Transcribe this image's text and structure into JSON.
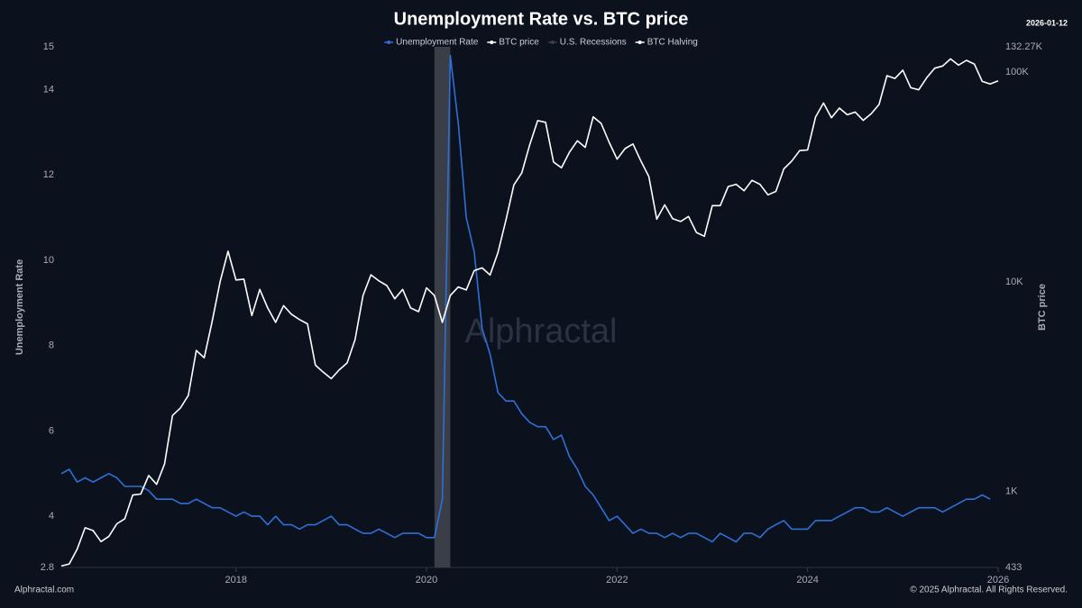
{
  "chart_data": {
    "type": "line",
    "title": "Unemployment Rate vs. BTC price",
    "date": "2026-01-12",
    "y_label": "Unemployment Rate",
    "y2_label": "BTC price",
    "watermark": "Alphractal",
    "footer_left": "Alphractal.com",
    "footer_right": "© 2025 Alphractal. All Rights Reserved.",
    "x": [
      "2016-03",
      "2016-04",
      "2016-05",
      "2016-06",
      "2016-07",
      "2016-08",
      "2016-09",
      "2016-10",
      "2016-11",
      "2016-12",
      "2017-01",
      "2017-02",
      "2017-03",
      "2017-04",
      "2017-05",
      "2017-06",
      "2017-07",
      "2017-08",
      "2017-09",
      "2017-10",
      "2017-11",
      "2017-12",
      "2018-01",
      "2018-02",
      "2018-03",
      "2018-04",
      "2018-05",
      "2018-06",
      "2018-07",
      "2018-08",
      "2018-09",
      "2018-10",
      "2018-11",
      "2018-12",
      "2019-01",
      "2019-02",
      "2019-03",
      "2019-04",
      "2019-05",
      "2019-06",
      "2019-07",
      "2019-08",
      "2019-09",
      "2019-10",
      "2019-11",
      "2019-12",
      "2020-01",
      "2020-02",
      "2020-03",
      "2020-04",
      "2020-05",
      "2020-06",
      "2020-07",
      "2020-08",
      "2020-09",
      "2020-10",
      "2020-11",
      "2020-12",
      "2021-01",
      "2021-02",
      "2021-03",
      "2021-04",
      "2021-05",
      "2021-06",
      "2021-07",
      "2021-08",
      "2021-09",
      "2021-10",
      "2021-11",
      "2021-12",
      "2022-01",
      "2022-02",
      "2022-03",
      "2022-04",
      "2022-05",
      "2022-06",
      "2022-07",
      "2022-08",
      "2022-09",
      "2022-10",
      "2022-11",
      "2022-12",
      "2023-01",
      "2023-02",
      "2023-03",
      "2023-04",
      "2023-05",
      "2023-06",
      "2023-07",
      "2023-08",
      "2023-09",
      "2023-10",
      "2023-11",
      "2023-12",
      "2024-01",
      "2024-02",
      "2024-03",
      "2024-04",
      "2024-05",
      "2024-06",
      "2024-07",
      "2024-08",
      "2024-09",
      "2024-10",
      "2024-11",
      "2024-12",
      "2025-01",
      "2025-02",
      "2025-03",
      "2025-04",
      "2025-05",
      "2025-06",
      "2025-07",
      "2025-08",
      "2025-09",
      "2025-10",
      "2025-11",
      "2025-12",
      "2026-01"
    ],
    "series": [
      {
        "name": "Unemployment Rate",
        "color": "#2f6fd6",
        "values": [
          5.0,
          5.1,
          4.8,
          4.9,
          4.8,
          4.9,
          5.0,
          4.9,
          4.7,
          4.7,
          4.7,
          4.6,
          4.4,
          4.4,
          4.4,
          4.3,
          4.3,
          4.4,
          4.3,
          4.2,
          4.2,
          4.1,
          4.0,
          4.1,
          4.0,
          4.0,
          3.8,
          4.0,
          3.8,
          3.8,
          3.7,
          3.8,
          3.8,
          3.9,
          4.0,
          3.8,
          3.8,
          3.7,
          3.6,
          3.6,
          3.7,
          3.6,
          3.5,
          3.6,
          3.6,
          3.6,
          3.5,
          3.5,
          4.4,
          14.8,
          13.2,
          11.0,
          10.2,
          8.4,
          7.8,
          6.9,
          6.7,
          6.7,
          6.4,
          6.2,
          6.1,
          6.1,
          5.8,
          5.9,
          5.4,
          5.1,
          4.7,
          4.5,
          4.2,
          3.9,
          4.0,
          3.8,
          3.6,
          3.7,
          3.6,
          3.6,
          3.5,
          3.6,
          3.5,
          3.6,
          3.6,
          3.5,
          3.4,
          3.6,
          3.5,
          3.4,
          3.6,
          3.6,
          3.5,
          3.7,
          3.8,
          3.9,
          3.7,
          3.7,
          3.7,
          3.9,
          3.9,
          3.9,
          4.0,
          4.1,
          4.2,
          4.2,
          4.1,
          4.1,
          4.2,
          4.1,
          4.0,
          4.1,
          4.2,
          4.2,
          4.2,
          4.1,
          4.2,
          4.3,
          4.4,
          4.4,
          4.5,
          4.4,
          null
        ]
      },
      {
        "name": "BTC price",
        "color": "#ffffff",
        "axis": "y2",
        "values": [
          440,
          450,
          530,
          670,
          650,
          575,
          610,
          700,
          740,
          960,
          970,
          1190,
          1080,
          1350,
          2300,
          2500,
          2870,
          4700,
          4340,
          6470,
          10000,
          14000,
          10200,
          10300,
          6900,
          9200,
          7500,
          6400,
          7700,
          7000,
          6600,
          6300,
          4000,
          3700,
          3450,
          3800,
          4100,
          5300,
          8600,
          10800,
          10100,
          9600,
          8300,
          9200,
          7500,
          7200,
          9350,
          8600,
          6400,
          8600,
          9450,
          9140,
          11300,
          11650,
          10780,
          13800,
          19700,
          29000,
          33100,
          45100,
          58800,
          57700,
          37300,
          35000,
          41500,
          47100,
          43800,
          61300,
          57000,
          46300,
          38500,
          43200,
          45500,
          37700,
          31800,
          19900,
          23300,
          20000,
          19400,
          20500,
          17200,
          16500,
          23100,
          23100,
          28500,
          29200,
          27200,
          30500,
          29200,
          26000,
          27000,
          34600,
          37700,
          42300,
          42600,
          61200,
          71300,
          60700,
          67500,
          62700,
          64600,
          59000,
          63300,
          70200,
          96400,
          93400,
          102400,
          84400,
          82500,
          94200,
          104600,
          107100,
          115800,
          108200,
          114000,
          109500,
          90400,
          88000,
          91000
        ]
      }
    ],
    "recessions": {
      "name": "U.S. Recessions",
      "color": "#3a3f47",
      "periods": [
        [
          "2020-02",
          "2020-04"
        ]
      ]
    },
    "halving": {
      "name": "BTC Halving",
      "color": "#ffffff"
    },
    "xlim": [
      "2016-03",
      "2026-01"
    ],
    "xticks": [
      2018,
      2020,
      2022,
      2024,
      2026
    ],
    "ylim": [
      2.8,
      15
    ],
    "yticks": [
      2.8,
      4,
      6,
      8,
      10,
      12,
      14,
      15
    ],
    "y2lim": [
      433,
      132270
    ],
    "y2log": true,
    "y2ticks": [
      433,
      {
        "value": 1000,
        "label": "1K"
      },
      {
        "value": 10000,
        "label": "10K"
      },
      {
        "value": 100000,
        "label": "100K"
      },
      {
        "value": 132270,
        "label": "132.27K"
      }
    ],
    "grid": false
  }
}
